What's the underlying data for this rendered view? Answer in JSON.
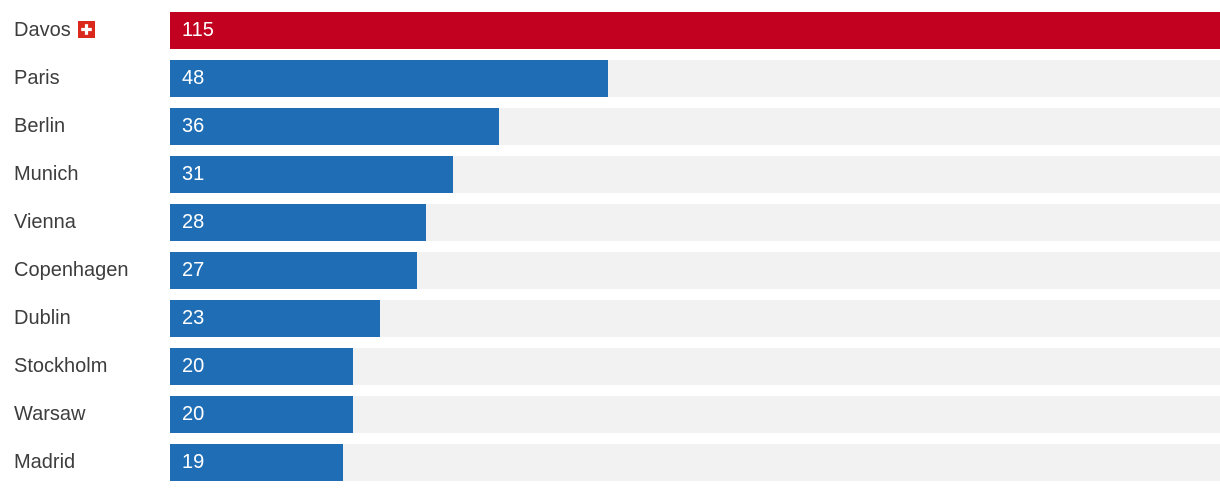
{
  "chart_data": {
    "type": "bar",
    "orientation": "horizontal",
    "title": "",
    "xlabel": "",
    "ylabel": "",
    "max_value": 115,
    "grid": false,
    "legend": false,
    "categories": [
      "Davos",
      "Paris",
      "Berlin",
      "Munich",
      "Vienna",
      "Copenhagen",
      "Dublin",
      "Stockholm",
      "Warsaw",
      "Madrid"
    ],
    "values": [
      115,
      48,
      36,
      31,
      28,
      27,
      23,
      20,
      20,
      19
    ],
    "highlight_index": 0,
    "flag_row_index": 0,
    "flag_icon": "swiss-flag-icon"
  },
  "colors": {
    "highlight_bar": "#c2001f",
    "bar": "#1f6eb5",
    "track": "#f2f2f2",
    "label_text": "#3d3d3d",
    "value_text": "#ffffff",
    "flag_red": "#da291c",
    "flag_cross": "#ffffff"
  }
}
